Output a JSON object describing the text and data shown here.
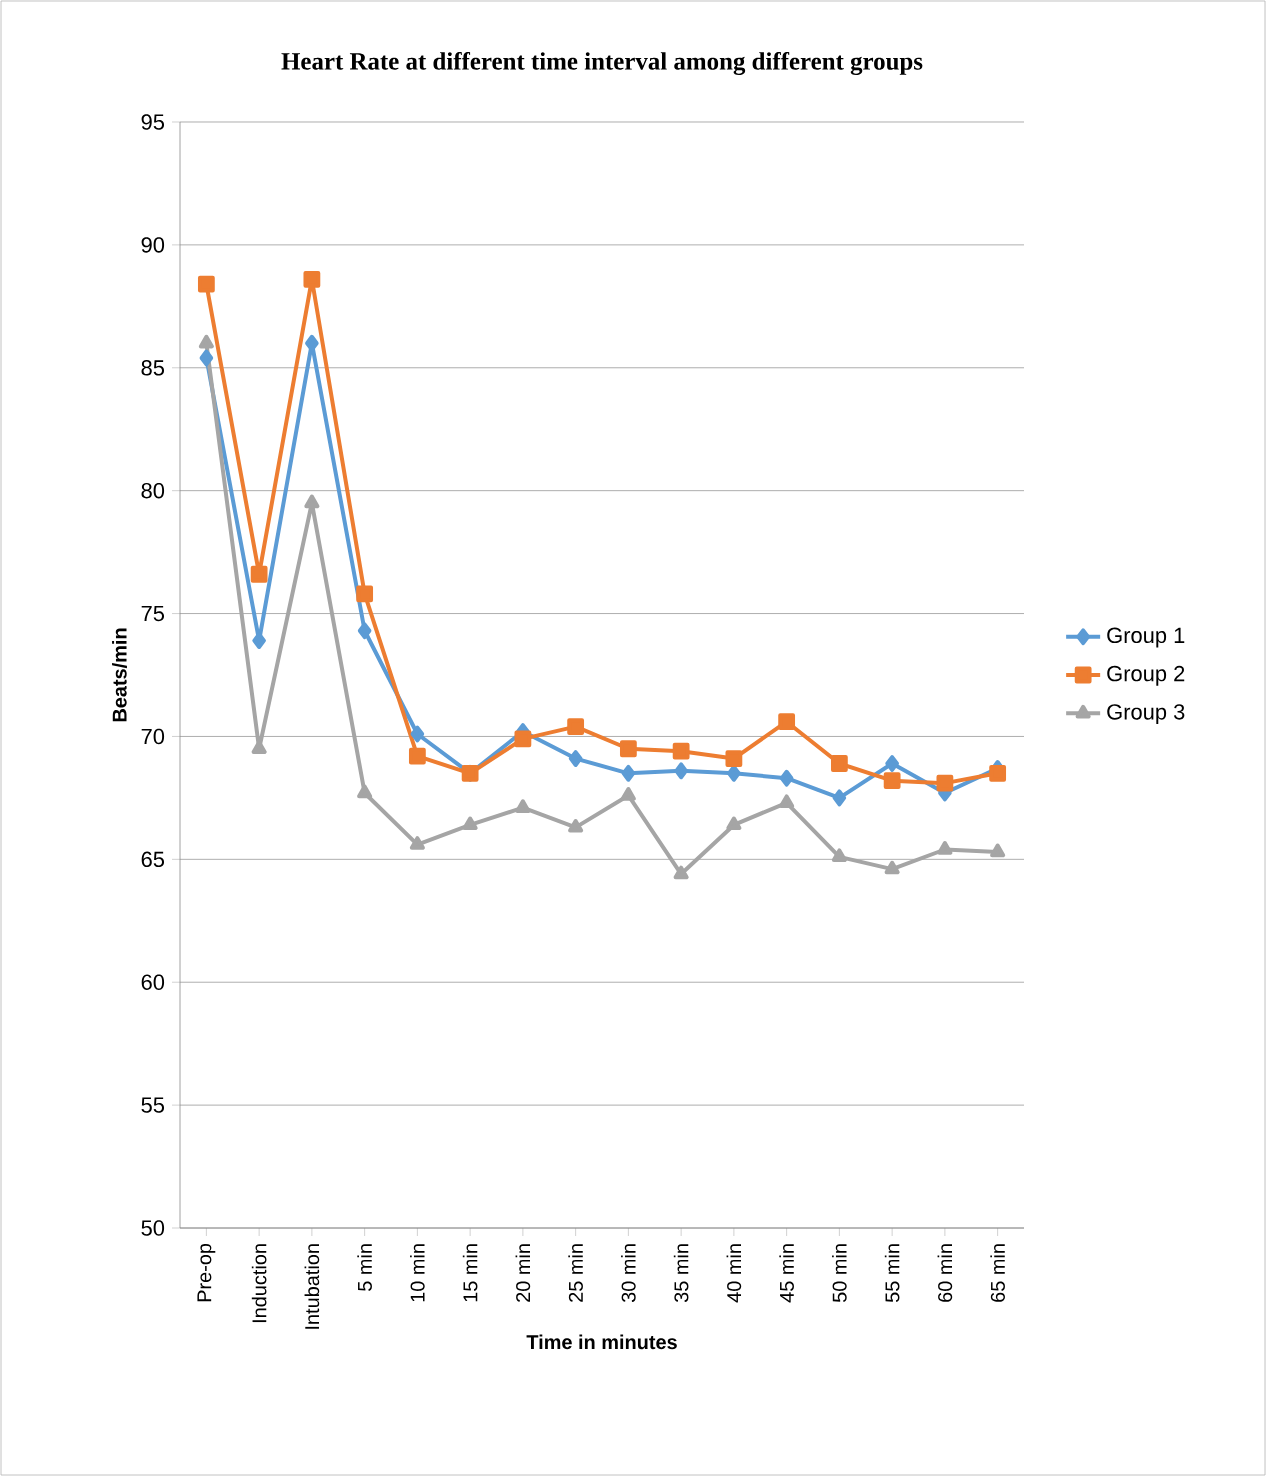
{
  "chart_data": {
    "type": "line",
    "title": "Heart Rate at different time interval among different groups",
    "xlabel": "Time in minutes",
    "ylabel": "Beats/min",
    "categories": [
      "Pre-op",
      "Induction",
      "Intubation",
      "5 min",
      "10 min",
      "15 min",
      "20 min",
      "25 min",
      "30 min",
      "35 min",
      "40 min",
      "45 min",
      "50 min",
      "55 min",
      "60 min",
      "65 min"
    ],
    "series": [
      {
        "name": "Group 1",
        "color": "#5b9bd5",
        "marker": "diamond",
        "values": [
          85.4,
          73.9,
          86.0,
          74.3,
          70.1,
          68.5,
          70.2,
          69.1,
          68.5,
          68.6,
          68.5,
          68.3,
          67.5,
          68.9,
          67.7,
          68.7
        ]
      },
      {
        "name": "Group 2",
        "color": "#ed7d31",
        "marker": "square",
        "values": [
          88.4,
          76.6,
          88.6,
          75.8,
          69.2,
          68.5,
          69.9,
          70.4,
          69.5,
          69.4,
          69.1,
          70.6,
          68.9,
          68.2,
          68.1,
          68.5
        ]
      },
      {
        "name": "Group 3",
        "color": "#a5a5a5",
        "marker": "triangle",
        "values": [
          86.0,
          69.5,
          79.5,
          67.7,
          65.6,
          66.4,
          67.1,
          66.3,
          67.6,
          64.4,
          66.4,
          67.3,
          65.1,
          64.6,
          65.4,
          65.3
        ]
      }
    ],
    "ylim": [
      50,
      95
    ],
    "yticks": [
      50,
      55,
      60,
      65,
      70,
      75,
      80,
      85,
      90,
      95
    ],
    "grid": "y",
    "legend": "right",
    "line_style": "solid"
  }
}
